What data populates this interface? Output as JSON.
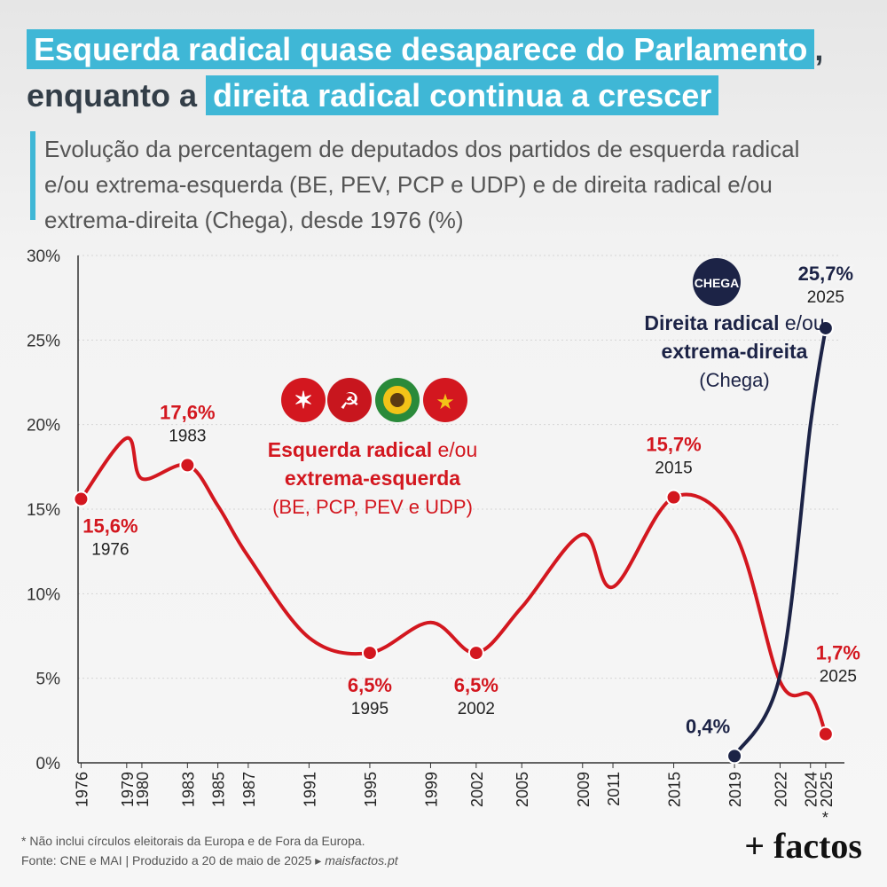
{
  "title": {
    "line1_highlight": "Esquerda radical quase desaparece do Parlamento",
    "line1_suffix": ",",
    "line2_prefix": "enquanto a",
    "line2_highlight": "direita radical continua a crescer"
  },
  "subtitle": "Evolução da percentagem de deputados dos partidos de esquerda radical e/ou extrema-esquerda (BE, PEV, PCP e UDP) e de direita radical e/ou extrema-direita (Chega), desde 1976 (%)",
  "chart_data": {
    "type": "line",
    "x_ticks": [
      "1976",
      "1979",
      "1980",
      "1983",
      "1985",
      "1987",
      "1991",
      "1995",
      "1999",
      "2002",
      "2005",
      "2009",
      "2011",
      "2015",
      "2019",
      "2022",
      "2024",
      "2025"
    ],
    "x_tick_note": "*",
    "y_ticks": [
      "0%",
      "5%",
      "10%",
      "15%",
      "20%",
      "25%",
      "30%"
    ],
    "ylim": [
      0,
      30
    ],
    "grid": true,
    "series": [
      {
        "name": "Esquerda radical e/ou extrema-esquerda",
        "name_bold": "Esquerda radical",
        "name_rest": "e/ou",
        "name_line2": "extrema-esquerda",
        "name_line3": "(BE, PCP, PEV e UDP)",
        "color": "#d3171f",
        "x": [
          "1976",
          "1979",
          "1980",
          "1983",
          "1985",
          "1987",
          "1991",
          "1995",
          "1999",
          "2002",
          "2005",
          "2009",
          "2011",
          "2015",
          "2019",
          "2022",
          "2024",
          "2025"
        ],
        "values": [
          15.6,
          19.2,
          16.8,
          17.6,
          15.2,
          12.2,
          7.4,
          6.5,
          8.3,
          6.5,
          9.2,
          13.5,
          10.4,
          15.7,
          13.6,
          4.8,
          4.0,
          1.7
        ],
        "labels": [
          {
            "x": "1976",
            "value": "15,6%",
            "year": "1976"
          },
          {
            "x": "1983",
            "value": "17,6%",
            "year": "1983"
          },
          {
            "x": "1995",
            "value": "6,5%",
            "year": "1995"
          },
          {
            "x": "2002",
            "value": "6,5%",
            "year": "2002"
          },
          {
            "x": "2015",
            "value": "15,7%",
            "year": "2015"
          },
          {
            "x": "2025",
            "value": "1,7%",
            "year": "2025"
          }
        ]
      },
      {
        "name": "Direita radical e/ou extrema-direita",
        "name_bold": "Direita radical",
        "name_rest": "e/ou",
        "name_line2": "extrema-direita",
        "name_line3": "(Chega)",
        "color": "#1c2346",
        "x": [
          "2019",
          "2022",
          "2024",
          "2025"
        ],
        "values": [
          0.4,
          5.2,
          20.0,
          25.7
        ],
        "labels": [
          {
            "x": "2019",
            "value": "0,4%",
            "year": ""
          },
          {
            "x": "2025",
            "value": "25,7%",
            "year": "2025"
          }
        ]
      }
    ]
  },
  "logos": {
    "left_parties": [
      "BE",
      "PCP",
      "PEV",
      "UDP"
    ],
    "chega": "CHEGA"
  },
  "footnote": "* Não inclui círculos eleitorais da Europa e de Fora da Europa.",
  "source_text": "Fonte: CNE e MAI  |  Produzido a 20 de maio de 2025 ▸",
  "source_link": "maisfactos.pt",
  "brand": "+ factos"
}
